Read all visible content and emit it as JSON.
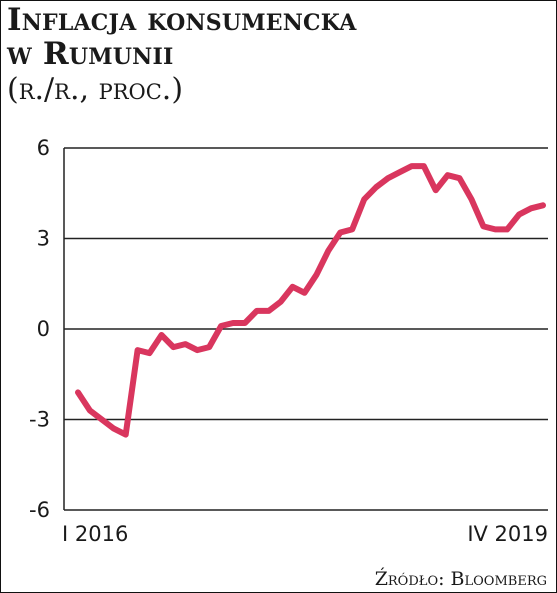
{
  "title_line1": "Inflacja konsumencka",
  "title_line2": "w Rumunii",
  "subtitle": "(r./r., proc.)",
  "source": "Źródło: Bloomberg",
  "colors": {
    "line": "#d9365e",
    "grid": "#222222",
    "text": "#1a1a1a"
  },
  "chart_data": {
    "type": "line",
    "title": "Inflacja konsumencka w Rumunii",
    "subtitle": "(r./r., proc.)",
    "ylim": [
      -6,
      6
    ],
    "yticks": [
      6,
      3,
      0,
      -3,
      -6
    ],
    "ytick_labels": [
      "6",
      "3",
      "0",
      "-3",
      "-6"
    ],
    "x_start_label": "I 2016",
    "x_end_label": "IV 2019",
    "grid": true,
    "x": [
      "2016-01",
      "2016-02",
      "2016-03",
      "2016-04",
      "2016-05",
      "2016-06",
      "2016-07",
      "2016-08",
      "2016-09",
      "2016-10",
      "2016-11",
      "2016-12",
      "2017-01",
      "2017-02",
      "2017-03",
      "2017-04",
      "2017-05",
      "2017-06",
      "2017-07",
      "2017-08",
      "2017-09",
      "2017-10",
      "2017-11",
      "2017-12",
      "2018-01",
      "2018-02",
      "2018-03",
      "2018-04",
      "2018-05",
      "2018-06",
      "2018-07",
      "2018-08",
      "2018-09",
      "2018-10",
      "2018-11",
      "2018-12",
      "2019-01",
      "2019-02",
      "2019-03",
      "2019-04"
    ],
    "values": [
      -2.1,
      -2.7,
      -3.0,
      -3.3,
      -3.5,
      -0.7,
      -0.8,
      -0.2,
      -0.6,
      -0.5,
      -0.7,
      -0.6,
      0.1,
      0.2,
      0.2,
      0.6,
      0.6,
      0.9,
      1.4,
      1.2,
      1.8,
      2.6,
      3.2,
      3.3,
      4.3,
      4.7,
      5.0,
      5.2,
      5.4,
      5.4,
      4.6,
      5.1,
      5.0,
      4.3,
      3.4,
      3.3,
      3.3,
      3.8,
      4.0,
      4.1
    ],
    "series": [
      {
        "name": "",
        "values_ref": "values"
      }
    ]
  }
}
